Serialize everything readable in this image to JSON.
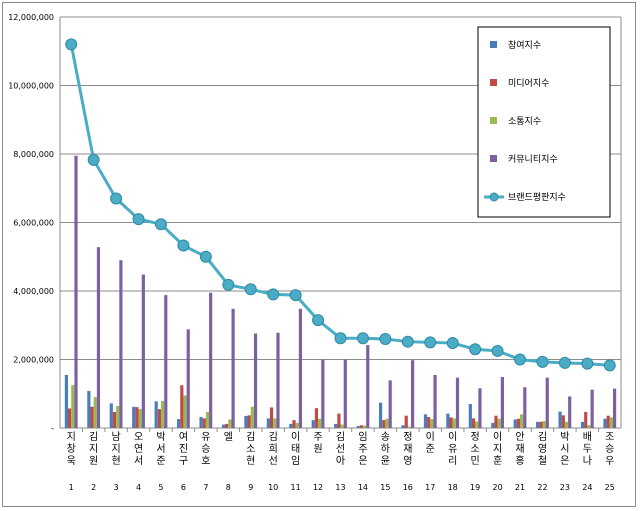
{
  "chart_data": {
    "type": "bar",
    "categories": [
      "지창욱",
      "김지원",
      "남지현",
      "오연서",
      "박서준",
      "여진구",
      "유승호",
      "엘",
      "김소현",
      "김희선",
      "이태임",
      "주원",
      "김선아",
      "임주은",
      "송하윤",
      "정재영",
      "이준",
      "이유리",
      "정소민",
      "이지훈",
      "안재홍",
      "김영철",
      "박시은",
      "배두나",
      "조승우"
    ],
    "ranks": [
      "1",
      "2",
      "3",
      "4",
      "5",
      "6",
      "7",
      "8",
      "9",
      "10",
      "11",
      "12",
      "13",
      "14",
      "15",
      "16",
      "17",
      "18",
      "19",
      "20",
      "21",
      "22",
      "23",
      "24",
      "25"
    ],
    "yticks": [
      "-",
      "2,000,000",
      "4,000,000",
      "6,000,000",
      "8,000,000",
      "10,000,000",
      "12,000,000"
    ],
    "ylim": [
      0,
      12000000
    ],
    "grid": true,
    "legend_position": "top-right",
    "series": [
      {
        "name": "참여지수",
        "type": "bar",
        "color": "#4a7ebb",
        "values": [
          1550000,
          1080000,
          720000,
          620000,
          780000,
          260000,
          320000,
          100000,
          350000,
          280000,
          120000,
          230000,
          120000,
          60000,
          740000,
          80000,
          400000,
          420000,
          700000,
          150000,
          250000,
          180000,
          480000,
          180000,
          270000
        ]
      },
      {
        "name": "미디어지수",
        "type": "bar",
        "color": "#be4b48",
        "values": [
          570000,
          620000,
          470000,
          610000,
          550000,
          1250000,
          280000,
          120000,
          370000,
          600000,
          230000,
          580000,
          420000,
          80000,
          230000,
          360000,
          320000,
          310000,
          280000,
          360000,
          270000,
          180000,
          370000,
          470000,
          360000
        ]
      },
      {
        "name": "소통지수",
        "type": "bar",
        "color": "#98b954",
        "values": [
          1250000,
          900000,
          640000,
          550000,
          790000,
          950000,
          470000,
          250000,
          620000,
          280000,
          150000,
          270000,
          100000,
          70000,
          270000,
          40000,
          260000,
          280000,
          190000,
          270000,
          400000,
          200000,
          180000,
          80000,
          310000
        ]
      },
      {
        "name": "커뮤니티지수",
        "type": "bar",
        "color": "#7d60a0",
        "values": [
          7950000,
          5280000,
          4900000,
          4480000,
          3880000,
          2880000,
          3950000,
          3480000,
          2760000,
          2780000,
          3480000,
          2000000,
          2000000,
          2420000,
          1390000,
          1980000,
          1550000,
          1470000,
          1160000,
          1490000,
          1190000,
          1470000,
          920000,
          1120000,
          1150000
        ]
      },
      {
        "name": "브랜드평판지수",
        "type": "line",
        "color": "#4bacc6",
        "values": [
          11200000,
          7830000,
          6700000,
          6100000,
          5950000,
          5330000,
          5000000,
          4180000,
          4050000,
          3900000,
          3880000,
          3150000,
          2620000,
          2620000,
          2600000,
          2520000,
          2500000,
          2480000,
          2300000,
          2250000,
          2000000,
          1930000,
          1900000,
          1880000,
          1830000
        ]
      }
    ]
  }
}
